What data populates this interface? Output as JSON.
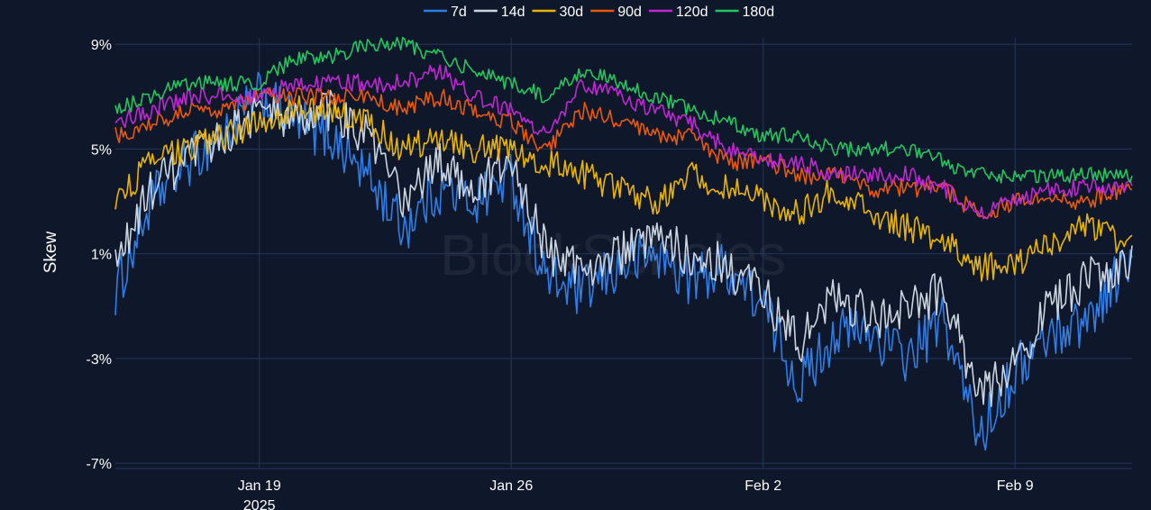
{
  "chart_data": {
    "type": "line",
    "title": "",
    "xlabel": "",
    "ylabel": "Skew",
    "watermark": "BlockScholes",
    "y_unit": "%",
    "ylim": [
      -7.2,
      10
    ],
    "y_ticks": [
      -7,
      -3,
      1,
      5,
      9
    ],
    "y_tick_labels": [
      "-7%",
      "-3%",
      "1%",
      "5%",
      "9%"
    ],
    "x_range": [
      "2025-01-15T00:00",
      "2025-02-12T06:00"
    ],
    "x_ticks": [
      {
        "date": "2025-01-19",
        "label": "Jan 19",
        "sublabel": "2025"
      },
      {
        "date": "2025-01-26",
        "label": "Jan 26",
        "sublabel": ""
      },
      {
        "date": "2025-02-02",
        "label": "Feb 2",
        "sublabel": ""
      },
      {
        "date": "2025-02-09",
        "label": "Feb 9",
        "sublabel": ""
      }
    ],
    "grid": true,
    "legend_position": "top-center",
    "x": [
      "2025-01-15",
      "2025-01-16",
      "2025-01-17",
      "2025-01-18",
      "2025-01-19",
      "2025-01-20",
      "2025-01-21",
      "2025-01-22",
      "2025-01-23",
      "2025-01-24",
      "2025-01-25",
      "2025-01-26",
      "2025-01-27",
      "2025-01-28",
      "2025-01-29",
      "2025-01-30",
      "2025-01-31",
      "2025-02-01",
      "2025-02-02",
      "2025-02-03",
      "2025-02-04",
      "2025-02-05",
      "2025-02-06",
      "2025-02-07",
      "2025-02-08",
      "2025-02-09",
      "2025-02-10",
      "2025-02-11",
      "2025-02-12"
    ],
    "series": [
      {
        "name": "7d",
        "color": "#2f7ee6",
        "values": [
          -0.5,
          3.0,
          4.5,
          5.5,
          7.0,
          6.0,
          5.5,
          4.0,
          2.0,
          3.5,
          3.0,
          4.0,
          0.0,
          -0.5,
          0.5,
          1.0,
          0.0,
          0.5,
          -1.0,
          -4.0,
          -2.0,
          -2.0,
          -3.0,
          -1.5,
          -6.0,
          -3.5,
          -2.0,
          -1.5,
          0.5
        ]
      },
      {
        "name": "14d",
        "color": "#cbd5e1",
        "values": [
          0.5,
          3.5,
          4.5,
          5.5,
          6.5,
          6.0,
          6.5,
          5.5,
          3.0,
          4.5,
          3.5,
          4.5,
          1.0,
          0.5,
          1.0,
          1.5,
          1.0,
          0.5,
          -0.5,
          -2.5,
          -0.5,
          -1.5,
          -1.0,
          -0.5,
          -4.5,
          -3.0,
          -1.0,
          0.0,
          0.5
        ]
      },
      {
        "name": "30d",
        "color": "#eab308",
        "values": [
          3.0,
          4.5,
          5.0,
          5.5,
          6.0,
          6.5,
          6.5,
          6.0,
          5.0,
          5.5,
          5.0,
          5.0,
          4.5,
          4.0,
          3.5,
          3.0,
          4.0,
          3.5,
          3.0,
          2.5,
          3.5,
          2.5,
          2.0,
          1.5,
          0.5,
          0.5,
          1.5,
          2.0,
          1.5
        ]
      },
      {
        "name": "90d",
        "color": "#ea580c",
        "values": [
          5.5,
          6.0,
          6.5,
          6.5,
          7.0,
          7.0,
          7.0,
          7.0,
          6.5,
          7.0,
          6.5,
          6.0,
          5.0,
          6.5,
          6.0,
          5.5,
          5.5,
          4.5,
          4.5,
          4.0,
          4.0,
          3.5,
          3.5,
          3.5,
          2.5,
          3.0,
          3.0,
          3.0,
          3.5
        ]
      },
      {
        "name": "120d",
        "color": "#c026d3",
        "values": [
          6.0,
          6.5,
          7.0,
          7.0,
          7.0,
          7.5,
          7.5,
          7.5,
          7.5,
          8.0,
          7.0,
          6.5,
          5.5,
          7.5,
          7.0,
          6.5,
          6.0,
          5.0,
          4.5,
          4.5,
          4.0,
          4.0,
          4.0,
          3.5,
          2.5,
          3.0,
          3.5,
          3.5,
          3.5
        ]
      },
      {
        "name": "180d",
        "color": "#22c55e",
        "values": [
          6.5,
          7.0,
          7.5,
          7.5,
          7.5,
          8.5,
          8.5,
          9.0,
          9.0,
          8.5,
          8.0,
          7.5,
          7.0,
          8.0,
          7.5,
          7.0,
          6.5,
          6.0,
          5.5,
          5.5,
          5.0,
          5.0,
          5.0,
          4.5,
          4.0,
          4.0,
          4.0,
          4.0,
          4.0
        ]
      }
    ]
  }
}
